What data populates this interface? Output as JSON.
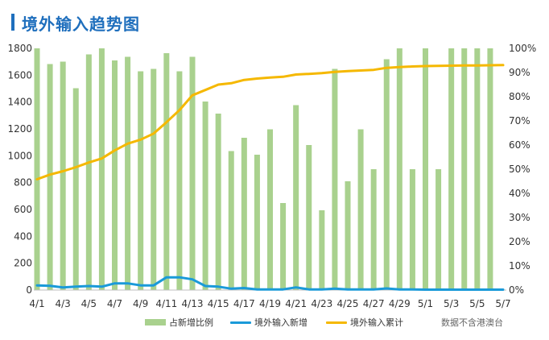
{
  "title": "境外输入趋势图",
  "note": "数据不含港澳台",
  "colors": {
    "title": "#1f6fbd",
    "bars": "#a9d18e",
    "line_new": "#1a9ad9",
    "line_cum": "#f5b800",
    "axis_text": "#333333"
  },
  "chart_data": {
    "type": "bar",
    "categories": [
      "4/1",
      "4/2",
      "4/3",
      "4/4",
      "4/5",
      "4/6",
      "4/7",
      "4/8",
      "4/9",
      "4/10",
      "4/11",
      "4/12",
      "4/13",
      "4/14",
      "4/15",
      "4/16",
      "4/17",
      "4/18",
      "4/19",
      "4/20",
      "4/21",
      "4/22",
      "4/23",
      "4/24",
      "4/25",
      "4/26",
      "4/27",
      "4/28",
      "4/29",
      "4/30",
      "5/1",
      "5/2",
      "5/3",
      "5/4",
      "5/5",
      "5/6",
      "5/7"
    ],
    "x_tick_labels": [
      "4/1",
      "4/3",
      "4/5",
      "4/7",
      "4/9",
      "4/11",
      "4/13",
      "4/15",
      "4/17",
      "4/19",
      "4/21",
      "4/23",
      "4/25",
      "4/27",
      "4/29",
      "5/1",
      "5/3",
      "5/5",
      "5/7"
    ],
    "y_left": {
      "min": 0,
      "max": 1800,
      "step": 200,
      "ticks": [
        "0",
        "200",
        "400",
        "600",
        "800",
        "1000",
        "1200",
        "1400",
        "1600",
        "1800"
      ]
    },
    "y_right": {
      "min": 0,
      "max": 1,
      "step": 0.1,
      "ticks": [
        "0%",
        "10%",
        "20%",
        "30%",
        "40%",
        "50%",
        "60%",
        "70%",
        "80%",
        "90%",
        "100%"
      ]
    },
    "grid": false,
    "legend_position": "bottom",
    "series": [
      {
        "name": "占新增比例",
        "type": "bar",
        "axis": "right",
        "values": [
          1.0,
          0.935,
          0.945,
          0.835,
          0.975,
          1.0,
          0.95,
          0.965,
          0.905,
          0.915,
          0.98,
          0.905,
          0.965,
          0.78,
          0.73,
          0.575,
          0.63,
          0.56,
          0.665,
          0.36,
          0.765,
          0.6,
          0.33,
          0.915,
          0.45,
          0.665,
          0.5,
          0.955,
          1.0,
          0.5,
          1.0,
          0.5,
          1.0,
          1.0,
          1.0,
          1.0,
          null
        ]
      },
      {
        "name": "境外输入新增",
        "type": "line",
        "axis": "left",
        "values": [
          35,
          32,
          20,
          25,
          30,
          25,
          50,
          50,
          35,
          35,
          95,
          95,
          80,
          30,
          25,
          10,
          15,
          5,
          5,
          5,
          20,
          5,
          5,
          10,
          5,
          5,
          5,
          12,
          5,
          5,
          3,
          3,
          3,
          3,
          3,
          3,
          3
        ]
      },
      {
        "name": "境外输入累计",
        "type": "line",
        "axis": "left",
        "values": [
          825,
          860,
          885,
          915,
          950,
          980,
          1040,
          1090,
          1120,
          1165,
          1250,
          1340,
          1450,
          1490,
          1530,
          1540,
          1565,
          1575,
          1583,
          1588,
          1605,
          1610,
          1615,
          1625,
          1630,
          1635,
          1640,
          1655,
          1660,
          1665,
          1668,
          1670,
          1671,
          1672,
          1673,
          1674,
          1675
        ]
      }
    ]
  }
}
